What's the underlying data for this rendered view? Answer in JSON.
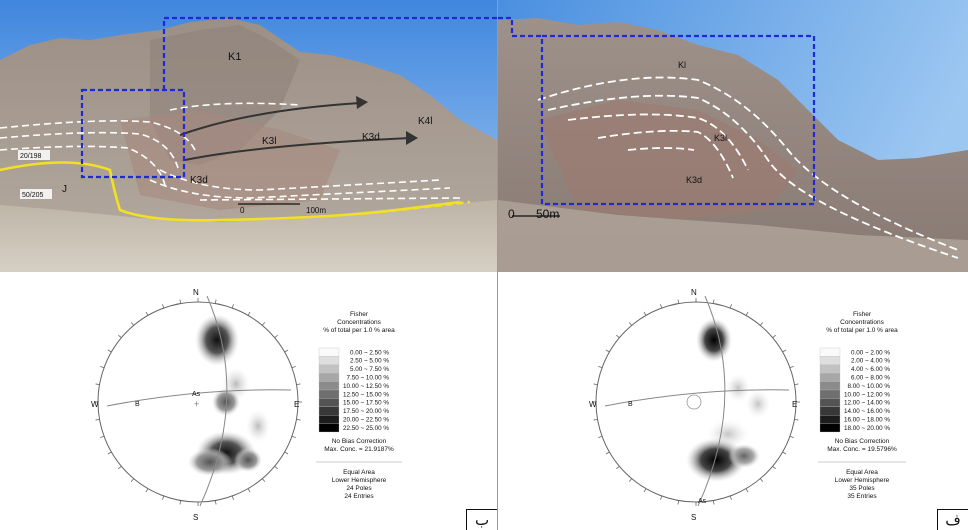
{
  "left_photo": {
    "labels": {
      "k1": "K1",
      "k3l": "K3l",
      "k3d_upper": "K3d",
      "k4l": "K4l",
      "k3d_lower": "K3d",
      "j": "J",
      "strike_a": "20/198",
      "strike_b": "50/205",
      "scale": "100m",
      "scale_zero": "0"
    }
  },
  "right_photo": {
    "labels": {
      "kl": "Kl",
      "k3l": "K3l",
      "k3d": "K3d",
      "scale": "50m",
      "scale_zero": "0"
    }
  },
  "stereonet_left": {
    "compass": {
      "n": "N",
      "s": "S",
      "e": "E",
      "w": "W"
    },
    "plane_labels": {
      "b": "B",
      "as": "As"
    },
    "legend_title": [
      "Fisher",
      "Concentrations",
      "% of total per 1.0 % area"
    ],
    "legend_items": [
      "0.00 ~  2.50 %",
      "2.50 ~  5.00 %",
      "5.00 ~  7.50 %",
      "7.50 ~ 10.00 %",
      "10.00 ~ 12.50 %",
      "12.50 ~ 15.00 %",
      "15.00 ~ 17.50 %",
      "17.50 ~ 20.00 %",
      "20.00 ~ 22.50 %",
      "22.50 ~ 25.00 %"
    ],
    "bias": "No Bias Correction",
    "max_conc": "Max. Conc. = 21.9187%",
    "projection": [
      "Equal Area",
      "Lower Hemisphere",
      "24 Poles",
      "24 Entries"
    ],
    "corner_label": "ب"
  },
  "stereonet_right": {
    "compass": {
      "n": "N",
      "s": "S",
      "e": "E",
      "w": "W"
    },
    "plane_labels": {
      "b": "B",
      "as": "As"
    },
    "legend_title": [
      "Fisher",
      "Concentrations",
      "% of total per 1.0 % area"
    ],
    "legend_items": [
      "0.00 ~  2.00 %",
      "2.00 ~  4.00 %",
      "4.00 ~  6.00 %",
      "6.00 ~  8.00 %",
      "8.00 ~ 10.00 %",
      "10.00 ~ 12.00 %",
      "12.00 ~ 14.00 %",
      "14.00 ~ 16.00 %",
      "16.00 ~ 18.00 %",
      "18.00 ~ 20.00 %"
    ],
    "bias": "No Bias Correction",
    "max_conc": "Max. Conc. = 19.5796%",
    "projection": [
      "Equal Area",
      "Lower Hemisphere",
      "35 Poles",
      "35 Entries"
    ],
    "corner_label": "ف"
  },
  "colors": {
    "sky": "#5a9be6",
    "mountain": "#a39a92",
    "ground": "#c7bfb2",
    "dashed_box": "#1f2ad6",
    "fault_line": "#f2e022",
    "fold_trace": "#ffffff",
    "arrow": "#333333"
  }
}
